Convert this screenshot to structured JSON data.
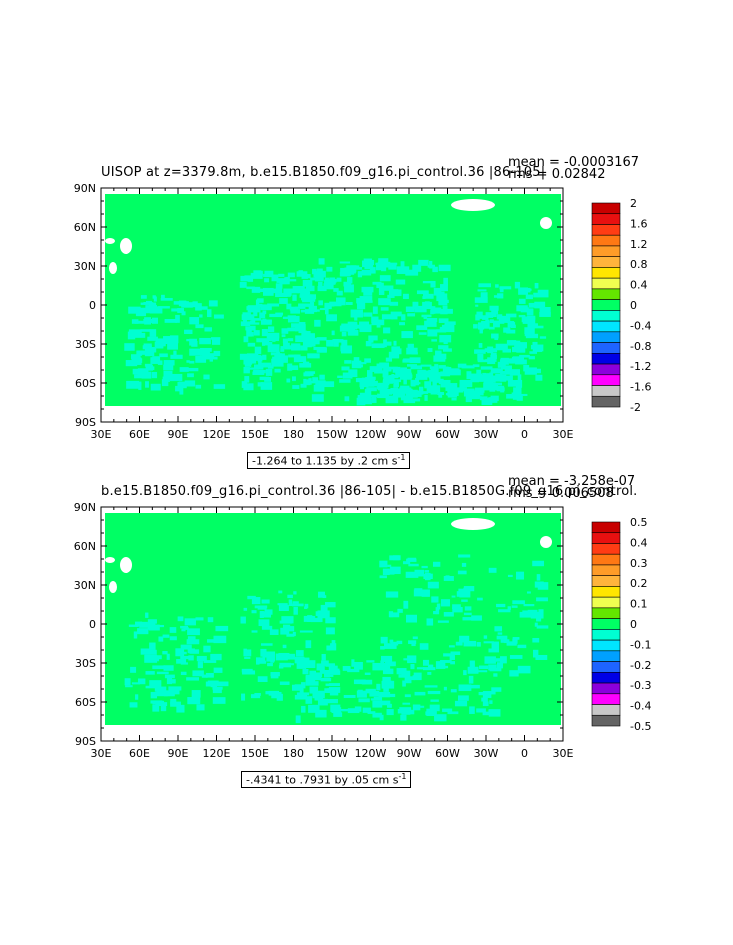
{
  "chart_data": [
    {
      "type": "heatmap",
      "title": "UISOP at z=3379.8m, b.e15.B1850.f09_g16.pi_control.36 |86-105|",
      "mean_text": "mean = -0.0003167",
      "rms_text": "rms = 0.02842",
      "xticks": [
        "30E",
        "60E",
        "90E",
        "120E",
        "150E",
        "180",
        "150W",
        "120W",
        "90W",
        "60W",
        "30W",
        "0",
        "30E"
      ],
      "yticks": [
        "90N",
        "60N",
        "30N",
        "0",
        "30S",
        "60S",
        "90S"
      ],
      "range_text": "-1.264 to 1.135 by .2 cm s",
      "range_sup": "-1",
      "colorbar_labels": [
        "2",
        "1.6",
        "1.2",
        "0.8",
        "0.4",
        "0",
        "-0.4",
        "-0.8",
        "-1.2",
        "-1.6",
        "-2"
      ],
      "colors": [
        "#c80000",
        "#e81010",
        "#ff3c14",
        "#ff7814",
        "#ff9c28",
        "#ffb43c",
        "#ffe600",
        "#f0ff50",
        "#64e600",
        "#00ff64",
        "#00ffd2",
        "#00e6ff",
        "#00a0ff",
        "#1e64ff",
        "#0000e6",
        "#8c00dc",
        "#ff00ff",
        "#c8c8c8",
        "#646464"
      ]
    },
    {
      "type": "heatmap",
      "title": "b.e15.B1850.f09_g16.pi_control.36 |86-105| - b.e15.B1850G.f09_g16.pi_control.",
      "mean_text": "mean = -3.258e-07",
      "rms_text": "rms = 0.006508",
      "xticks": [
        "30E",
        "60E",
        "90E",
        "120E",
        "150E",
        "180",
        "150W",
        "120W",
        "90W",
        "60W",
        "30W",
        "0",
        "30E"
      ],
      "yticks": [
        "90N",
        "60N",
        "30N",
        "0",
        "30S",
        "60S",
        "90S"
      ],
      "range_text": "-.4341 to .7931 by .05 cm s",
      "range_sup": "-1",
      "colorbar_labels": [
        "0.5",
        "0.4",
        "0.3",
        "0.2",
        "0.1",
        "0",
        "-0.1",
        "-0.2",
        "-0.3",
        "-0.4",
        "-0.5"
      ],
      "colors": [
        "#c80000",
        "#e81010",
        "#ff3c14",
        "#ff7814",
        "#ff9c28",
        "#ffb43c",
        "#ffe600",
        "#f0ff50",
        "#64e600",
        "#00ff64",
        "#00ffd2",
        "#00e6ff",
        "#00a0ff",
        "#1e64ff",
        "#0000e6",
        "#8c00dc",
        "#ff00ff",
        "#c8c8c8",
        "#646464"
      ]
    }
  ]
}
